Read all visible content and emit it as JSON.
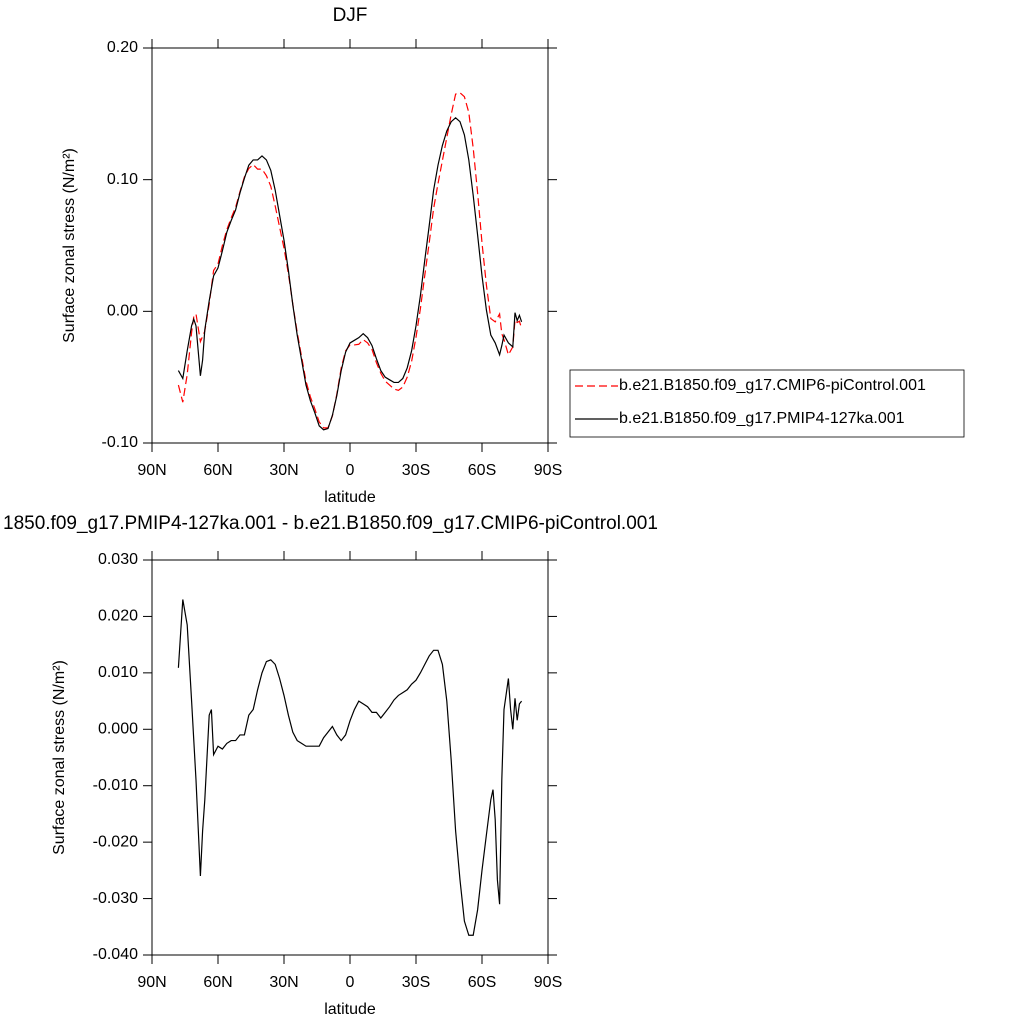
{
  "chart_data": [
    {
      "type": "line",
      "title": "DJF",
      "xlabel": "latitude",
      "ylabel": "Surface zonal stress (N/m²)",
      "x": [
        78,
        76,
        74,
        72,
        71,
        70,
        68,
        67,
        66,
        64,
        62,
        60,
        58,
        56,
        54,
        52,
        50,
        48,
        46,
        44,
        42,
        40,
        38,
        36,
        34,
        32,
        30,
        28,
        26,
        24,
        22,
        20,
        18,
        16,
        14,
        12,
        10,
        8,
        6,
        4,
        2,
        0,
        -2,
        -4,
        -6,
        -8,
        -10,
        -12,
        -14,
        -16,
        -18,
        -20,
        -22,
        -24,
        -26,
        -28,
        -30,
        -32,
        -34,
        -36,
        -38,
        -40,
        -42,
        -44,
        -46,
        -48,
        -50,
        -52,
        -54,
        -56,
        -58,
        -60,
        -62,
        -64,
        -66,
        -68,
        -69,
        -70,
        -72,
        -74,
        -75,
        -76,
        -77,
        -78
      ],
      "xlim": [
        90,
        -90
      ],
      "xticks": [
        {
          "value": 90,
          "label": "90N"
        },
        {
          "value": 60,
          "label": "60N"
        },
        {
          "value": 30,
          "label": "30N"
        },
        0,
        {
          "value": -30,
          "label": "30S"
        },
        {
          "value": -60,
          "label": "60S"
        },
        {
          "value": -90,
          "label": "90S"
        }
      ],
      "ylim": [
        -0.1,
        0.2
      ],
      "yticks": [
        {
          "value": -0.1,
          "label": "-0.10"
        },
        {
          "value": 0,
          "label": "0.00"
        },
        {
          "value": 0.1,
          "label": "0.10"
        },
        {
          "value": 0.2,
          "label": "0.20"
        }
      ],
      "legend": "right",
      "series": [
        {
          "name": "b.e21.B1850.f09_g17.CMIP6-piControl.001",
          "color": "#ff0000",
          "linestyle": "dashed",
          "values": [
            -0.056,
            -0.069,
            -0.048,
            -0.016,
            -0.004,
            -0.002,
            -0.023,
            -0.019,
            -0.015,
            0.0055,
            0.031,
            0.036,
            0.05,
            0.062,
            0.071,
            0.079,
            0.091,
            0.102,
            0.1085,
            0.1115,
            0.108,
            0.108,
            0.103,
            0.095,
            0.08,
            0.064,
            0.048,
            0.0285,
            0.0055,
            -0.016,
            -0.0345,
            -0.053,
            -0.065,
            -0.074,
            -0.084,
            -0.0885,
            -0.0885,
            -0.0795,
            -0.063,
            -0.043,
            -0.03,
            -0.0255,
            -0.0255,
            -0.025,
            -0.0215,
            -0.024,
            -0.029,
            -0.039,
            -0.047,
            -0.053,
            -0.056,
            -0.059,
            -0.06,
            -0.0575,
            -0.05,
            -0.038,
            -0.0197,
            0.002,
            0.0275,
            0.052,
            0.078,
            0.097,
            0.1145,
            0.132,
            0.1495,
            0.165,
            0.166,
            0.163,
            0.151,
            0.124,
            0.09,
            0.052,
            0.02,
            -0.0055,
            -0.008,
            -0.002,
            -0.017,
            -0.0215,
            -0.033,
            -0.027,
            -0.0065,
            -0.0085,
            -0.0075,
            -0.013
          ]
        },
        {
          "name": "b.e21.B1850.f09_g17.PMIP4-127ka.001",
          "color": "#000000",
          "linestyle": "solid",
          "values": [
            -0.045,
            -0.051,
            -0.03,
            -0.011,
            -0.006,
            -0.011,
            -0.049,
            -0.037,
            -0.014,
            0.008,
            0.027,
            0.033,
            0.046,
            0.06,
            0.069,
            0.077,
            0.09,
            0.101,
            0.111,
            0.115,
            0.115,
            0.118,
            0.115,
            0.107,
            0.092,
            0.073,
            0.054,
            0.031,
            0.005,
            -0.018,
            -0.037,
            -0.056,
            -0.068,
            -0.077,
            -0.087,
            -0.09,
            -0.089,
            -0.079,
            -0.064,
            -0.045,
            -0.031,
            -0.024,
            -0.022,
            -0.02,
            -0.017,
            -0.02,
            -0.026,
            -0.036,
            -0.045,
            -0.05,
            -0.052,
            -0.054,
            -0.054,
            -0.051,
            -0.043,
            -0.03,
            -0.011,
            0.012,
            0.039,
            0.065,
            0.092,
            0.111,
            0.126,
            0.137,
            0.144,
            0.147,
            0.144,
            0.134,
            0.115,
            0.088,
            0.058,
            0.027,
            0.001,
            -0.018,
            -0.024,
            -0.033,
            -0.026,
            -0.018,
            -0.024,
            -0.027,
            -0.001,
            -0.007,
            -0.003,
            -0.008
          ]
        }
      ]
    },
    {
      "type": "line",
      "title": "1850.f09_g17.PMIP4-127ka.001 - b.e21.B1850.f09_g17.CMIP6-piControl.001",
      "xlabel": "latitude",
      "ylabel": "Surface zonal stress (N/m²)",
      "x": [
        78,
        76,
        74,
        72,
        71,
        70,
        68,
        67,
        66,
        65,
        64,
        63,
        62,
        60,
        58,
        56,
        54,
        52,
        50,
        48,
        46,
        44,
        42,
        40,
        38,
        36,
        34,
        32,
        30,
        28,
        26,
        24,
        22,
        20,
        18,
        16,
        14,
        12,
        10,
        8,
        6,
        4,
        2,
        0,
        -2,
        -4,
        -6,
        -8,
        -10,
        -12,
        -14,
        -16,
        -18,
        -20,
        -22,
        -24,
        -26,
        -28,
        -30,
        -32,
        -34,
        -36,
        -38,
        -40,
        -42,
        -44,
        -46,
        -48,
        -50,
        -52,
        -54,
        -56,
        -58,
        -60,
        -62,
        -64,
        -65,
        -66,
        -67,
        -68,
        -69,
        -70,
        -72,
        -73,
        -74,
        -75,
        -76,
        -77,
        -78
      ],
      "xlim": [
        90,
        -90
      ],
      "xticks": [
        {
          "value": 90,
          "label": "90N"
        },
        {
          "value": 60,
          "label": "60N"
        },
        {
          "value": 30,
          "label": "30N"
        },
        0,
        {
          "value": -30,
          "label": "30S"
        },
        {
          "value": -60,
          "label": "60S"
        },
        {
          "value": -90,
          "label": "90S"
        }
      ],
      "ylim": [
        -0.04,
        0.03
      ],
      "yticks": [
        {
          "value": -0.04,
          "label": "-0.040"
        },
        {
          "value": -0.03,
          "label": "-0.030"
        },
        {
          "value": -0.02,
          "label": "-0.020"
        },
        {
          "value": -0.01,
          "label": "-0.010"
        },
        {
          "value": 0,
          "label": "0.000"
        },
        {
          "value": 0.01,
          "label": "0.010"
        },
        {
          "value": 0.02,
          "label": "0.020"
        },
        {
          "value": 0.03,
          "label": "0.030"
        }
      ],
      "series": [
        {
          "color": "#000000",
          "linestyle": "solid",
          "values": [
            0.0109,
            0.023,
            0.0185,
            0.005,
            -0.002,
            -0.009,
            -0.026,
            -0.018,
            -0.0125,
            -0.005,
            0.0025,
            0.0035,
            -0.0045,
            -0.003,
            -0.0035,
            -0.0025,
            -0.002,
            -0.002,
            -0.001,
            -0.001,
            0.0025,
            0.0035,
            0.007,
            0.01,
            0.012,
            0.0123,
            0.0115,
            0.009,
            0.006,
            0.0025,
            -0.0005,
            -0.002,
            -0.0025,
            -0.003,
            -0.003,
            -0.003,
            -0.003,
            -0.0015,
            -0.0005,
            0.0005,
            -0.001,
            -0.002,
            -0.001,
            0.0015,
            0.0035,
            0.005,
            0.0045,
            0.004,
            0.003,
            0.003,
            0.002,
            0.003,
            0.004,
            0.0052,
            0.006,
            0.0065,
            0.007,
            0.008,
            0.0087,
            0.01,
            0.0115,
            0.013,
            0.014,
            0.014,
            0.0115,
            0.005,
            -0.0055,
            -0.018,
            -0.0267,
            -0.034,
            -0.0365,
            -0.0365,
            -0.032,
            -0.025,
            -0.0187,
            -0.0125,
            -0.0107,
            -0.016,
            -0.0267,
            -0.031,
            -0.009,
            0.0035,
            0.009,
            0.0035,
            0,
            0.0055,
            0.0016,
            0.0045,
            0.005
          ]
        }
      ]
    }
  ]
}
